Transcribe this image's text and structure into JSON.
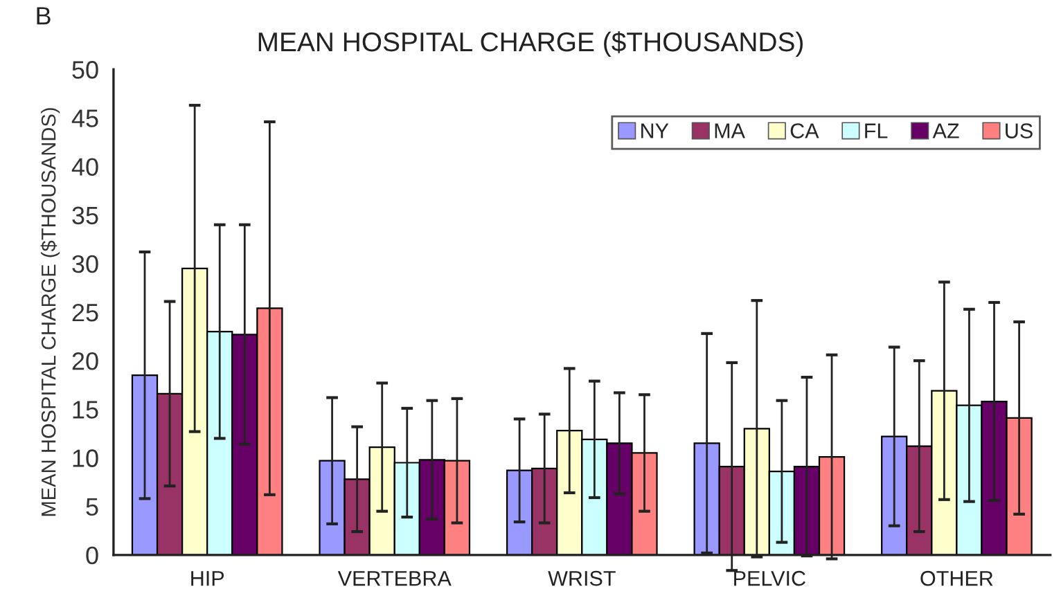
{
  "chart_data": {
    "type": "bar",
    "title": "MEAN HOSPITAL CHARGE ($THOUSANDS)",
    "ylabel": "MEAN HOSPITAL CHARGE ($THOUSANDS)",
    "annotations": [
      "B"
    ],
    "categories": [
      "HIP",
      "VERTEBRA",
      "WRIST",
      "PELVIC",
      "OTHER"
    ],
    "series": [
      {
        "name": "NY",
        "color": "#9999ff",
        "values": [
          18.5,
          9.7,
          8.7,
          11.5,
          12.2
        ],
        "errors": [
          12.7,
          6.5,
          5.3,
          11.3,
          9.2
        ]
      },
      {
        "name": "MA",
        "color": "#993366",
        "values": [
          16.6,
          7.8,
          8.9,
          9.1,
          11.2
        ],
        "errors": [
          9.5,
          5.4,
          5.6,
          10.7,
          8.8
        ]
      },
      {
        "name": "CA",
        "color": "#ffffcc",
        "values": [
          29.5,
          11.1,
          12.8,
          13.0,
          16.9
        ],
        "errors": [
          16.8,
          6.6,
          6.4,
          13.2,
          11.2
        ]
      },
      {
        "name": "FL",
        "color": "#ccffff",
        "values": [
          23.0,
          9.5,
          11.9,
          8.6,
          15.4
        ],
        "errors": [
          11.0,
          5.6,
          6.0,
          7.3,
          9.9
        ]
      },
      {
        "name": "AZ",
        "color": "#660066",
        "values": [
          22.7,
          9.8,
          11.5,
          9.1,
          15.8
        ],
        "errors": [
          11.3,
          6.1,
          5.2,
          9.2,
          10.2
        ]
      },
      {
        "name": "US",
        "color": "#ff8080",
        "values": [
          25.4,
          9.7,
          10.5,
          10.1,
          14.1
        ],
        "errors": [
          19.2,
          6.4,
          6.0,
          10.5,
          9.9
        ]
      }
    ],
    "ylim": [
      0,
      50
    ],
    "yticks": [
      0,
      5,
      10,
      15,
      20,
      25,
      30,
      35,
      40,
      45,
      50
    ],
    "grid": false,
    "legend": "top right"
  }
}
